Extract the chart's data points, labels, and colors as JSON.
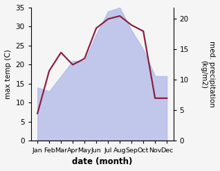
{
  "months": [
    "Jan",
    "Feb",
    "Mar",
    "Apr",
    "May",
    "Jun",
    "Jul",
    "Aug",
    "Sep",
    "Oct",
    "Nov",
    "Dec"
  ],
  "max_temp": [
    14,
    13,
    17,
    21,
    21,
    28,
    34,
    35,
    29,
    24,
    17,
    17
  ],
  "med_precip": [
    4.5,
    11.5,
    14.5,
    12.5,
    13.5,
    18.5,
    20.0,
    20.5,
    19.0,
    18.0,
    7.0,
    7.0
  ],
  "temp_ylim": [
    0,
    35
  ],
  "precip_ylim": [
    0,
    21.875
  ],
  "fill_color": "#b0b8e8",
  "fill_alpha": 0.75,
  "line_color": "#8b2040",
  "line_width": 1.6,
  "ylabel_left": "max temp (C)",
  "ylabel_right": "med. precipitation\n(kg/m2)",
  "xlabel": "date (month)",
  "yticks_left": [
    0,
    5,
    10,
    15,
    20,
    25,
    30,
    35
  ],
  "yticks_right": [
    0,
    5,
    10,
    15,
    20
  ],
  "figsize": [
    3.18,
    2.47
  ],
  "dpi": 100,
  "bg_color": "#f5f5f5",
  "spine_color": "#888888"
}
